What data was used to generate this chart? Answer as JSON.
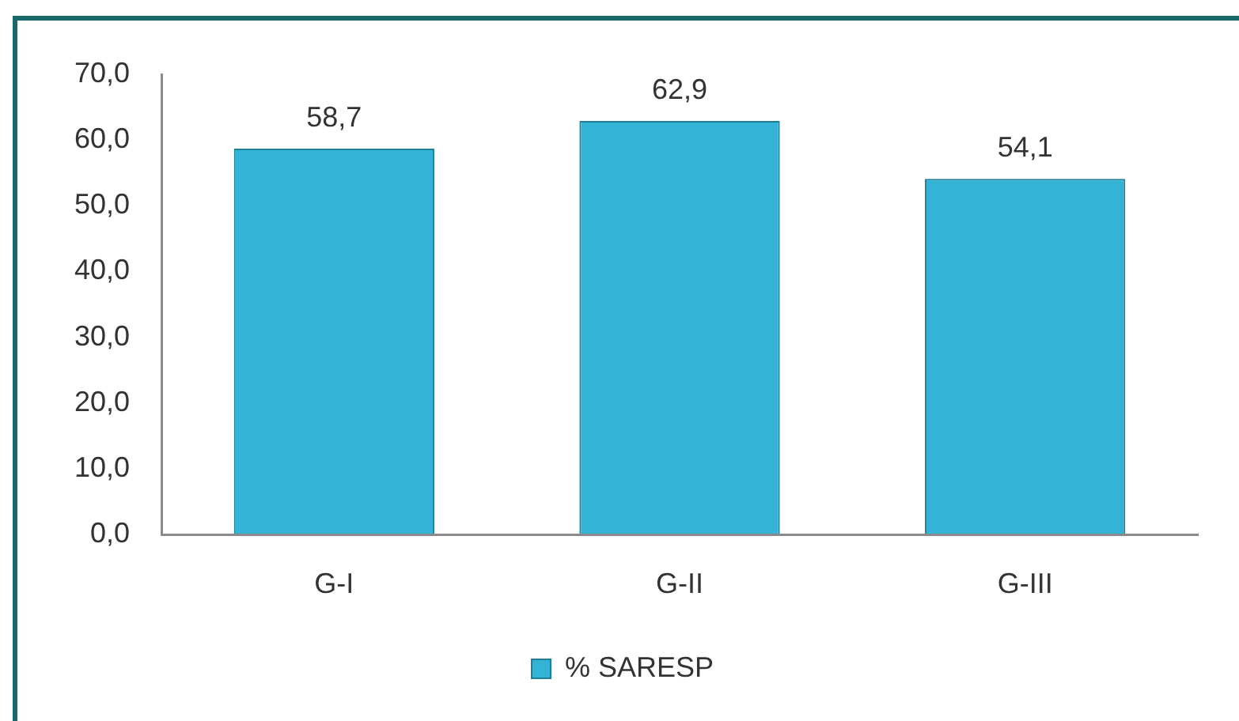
{
  "chart_data": {
    "type": "bar",
    "categories": [
      "G-I",
      "G-II",
      "G-III"
    ],
    "series": [
      {
        "name": "% SARESP",
        "color": "#33b4d7",
        "values": [
          58.7,
          62.9,
          54.1
        ],
        "value_labels": [
          "58,7",
          "62,9",
          "54,1"
        ]
      }
    ],
    "ylim": [
      0,
      70
    ],
    "yticks": [
      {
        "value": 0,
        "label": "0,0"
      },
      {
        "value": 10,
        "label": "10,0"
      },
      {
        "value": 20,
        "label": "20,0"
      },
      {
        "value": 30,
        "label": "30,0"
      },
      {
        "value": 40,
        "label": "40,0"
      },
      {
        "value": 50,
        "label": "50,0"
      },
      {
        "value": 60,
        "label": "60,0"
      },
      {
        "value": 70,
        "label": "70,0"
      }
    ],
    "grid": false,
    "legend": "bottom"
  }
}
